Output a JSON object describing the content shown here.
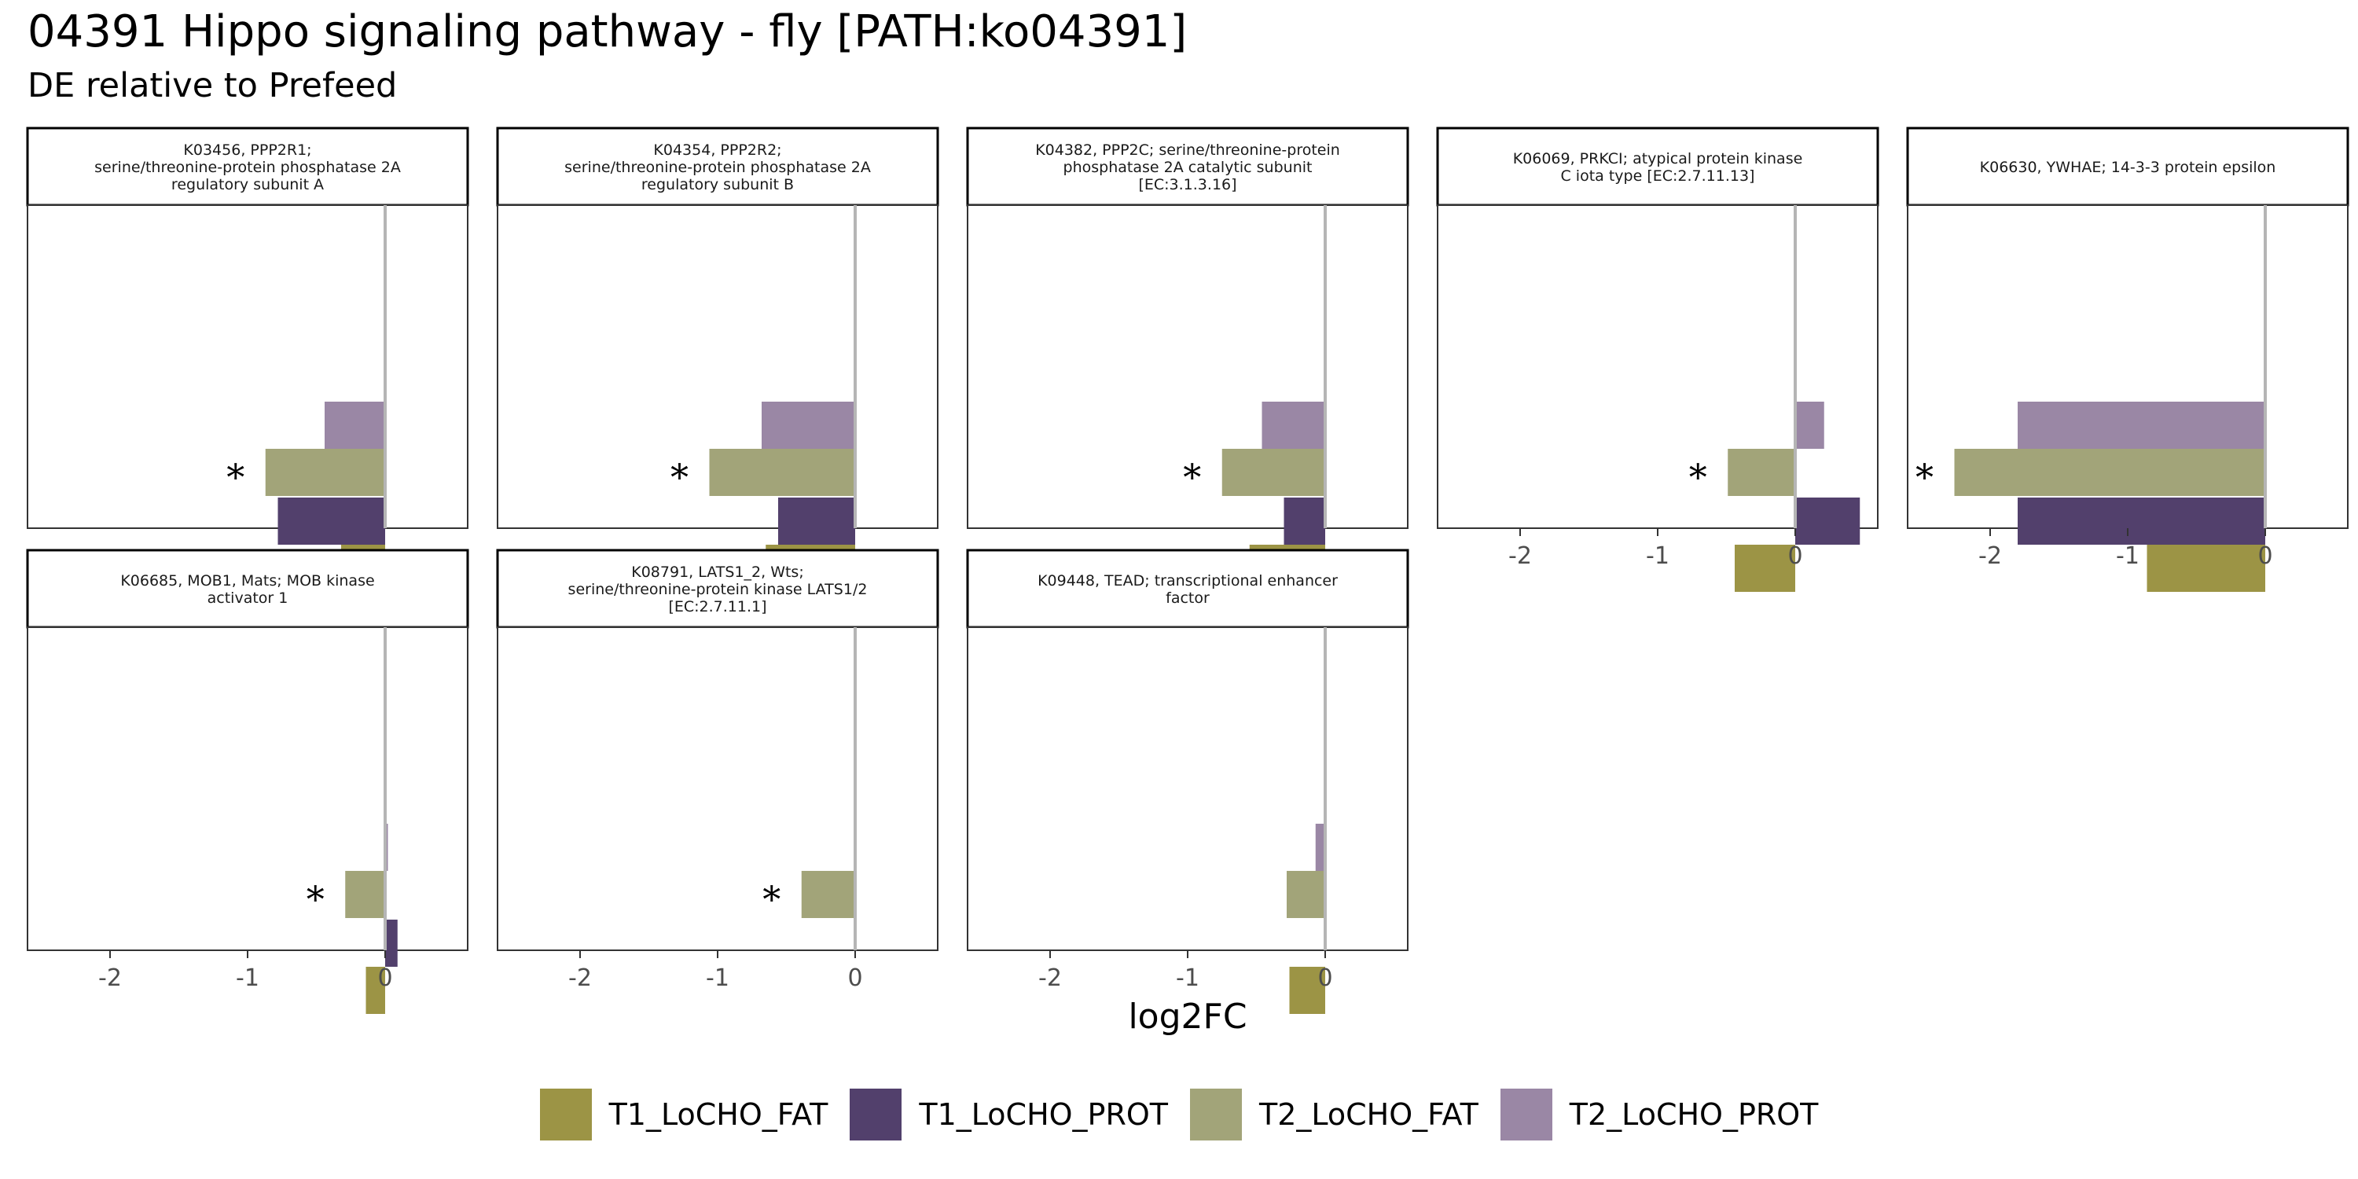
{
  "title": "04391 Hippo signaling pathway - fly [PATH:ko04391]",
  "subtitle": "DE relative to Prefeed",
  "chart_data": {
    "type": "bar",
    "orientation": "horizontal",
    "layout": "facets 5 columns x 2 rows",
    "xlabel": "log2FC",
    "ylabel": "",
    "xlim": [
      -2.6,
      0.6
    ],
    "xticks": [
      -2,
      -1,
      0
    ],
    "x_tick_labels": [
      "-2",
      "-1",
      "0"
    ],
    "reference_line": 0,
    "significance_marker": "*",
    "legend_position": "bottom",
    "series": [
      {
        "name": "T1_LoCHO_FAT",
        "color": "#9c9445"
      },
      {
        "name": "T1_LoCHO_PROT",
        "color": "#52406c"
      },
      {
        "name": "T2_LoCHO_FAT",
        "color": "#a2a479"
      },
      {
        "name": "T2_LoCHO_PROT",
        "color": "#9a87a5"
      }
    ],
    "bar_order_top_to_bottom": [
      "T2_LoCHO_PROT",
      "T2_LoCHO_FAT",
      "T1_LoCHO_PROT",
      "T1_LoCHO_FAT"
    ],
    "panels": [
      {
        "strip": [
          "K03456, PPP2R1;",
          "serine/threonine-protein phosphatase 2A",
          "regulatory subunit A"
        ],
        "values": {
          "T1_LoCHO_FAT": -0.32,
          "T1_LoCHO_PROT": -0.78,
          "T2_LoCHO_FAT": -0.87,
          "T2_LoCHO_PROT": -0.44
        },
        "significant": [
          "T2_LoCHO_FAT"
        ]
      },
      {
        "strip": [
          "K04354, PPP2R2;",
          "serine/threonine-protein phosphatase 2A",
          "regulatory subunit B"
        ],
        "values": {
          "T1_LoCHO_FAT": -0.65,
          "T1_LoCHO_PROT": -0.56,
          "T2_LoCHO_FAT": -1.06,
          "T2_LoCHO_PROT": -0.68
        },
        "significant": [
          "T2_LoCHO_FAT"
        ]
      },
      {
        "strip": [
          "K04382, PPP2C; serine/threonine-protein",
          "phosphatase 2A catalytic subunit",
          "[EC:3.1.3.16]"
        ],
        "values": {
          "T1_LoCHO_FAT": -0.55,
          "T1_LoCHO_PROT": -0.3,
          "T2_LoCHO_FAT": -0.75,
          "T2_LoCHO_PROT": -0.46
        },
        "significant": [
          "T2_LoCHO_FAT"
        ]
      },
      {
        "strip": [
          "K06069, PRKCI; atypical protein kinase",
          "C iota type [EC:2.7.11.13]"
        ],
        "values": {
          "T1_LoCHO_FAT": -0.44,
          "T1_LoCHO_PROT": 0.47,
          "T2_LoCHO_FAT": -0.49,
          "T2_LoCHO_PROT": 0.21
        },
        "significant": [
          "T2_LoCHO_FAT"
        ]
      },
      {
        "strip": [
          "K06630, YWHAE; 14-3-3 protein epsilon"
        ],
        "values": {
          "T1_LoCHO_FAT": -0.86,
          "T1_LoCHO_PROT": -1.8,
          "T2_LoCHO_FAT": -2.26,
          "T2_LoCHO_PROT": -1.8
        },
        "significant": [
          "T2_LoCHO_FAT"
        ]
      },
      {
        "strip": [
          "K06685, MOB1, Mats; MOB kinase",
          "activator 1"
        ],
        "values": {
          "T1_LoCHO_FAT": -0.14,
          "T1_LoCHO_PROT": 0.09,
          "T2_LoCHO_FAT": -0.29,
          "T2_LoCHO_PROT": 0.02
        },
        "significant": [
          "T2_LoCHO_FAT"
        ]
      },
      {
        "strip": [
          "K08791, LATS1_2, Wts;",
          "serine/threonine-protein kinase LATS1/2",
          "[EC:2.7.11.1]"
        ],
        "values": {
          "T2_LoCHO_FAT": -0.39
        },
        "significant": [
          "T2_LoCHO_FAT"
        ]
      },
      {
        "strip": [
          "K09448, TEAD; transcriptional enhancer",
          "factor"
        ],
        "values": {
          "T1_LoCHO_FAT": -0.26,
          "T2_LoCHO_FAT": -0.28,
          "T2_LoCHO_PROT": -0.07
        },
        "significant": []
      }
    ]
  }
}
